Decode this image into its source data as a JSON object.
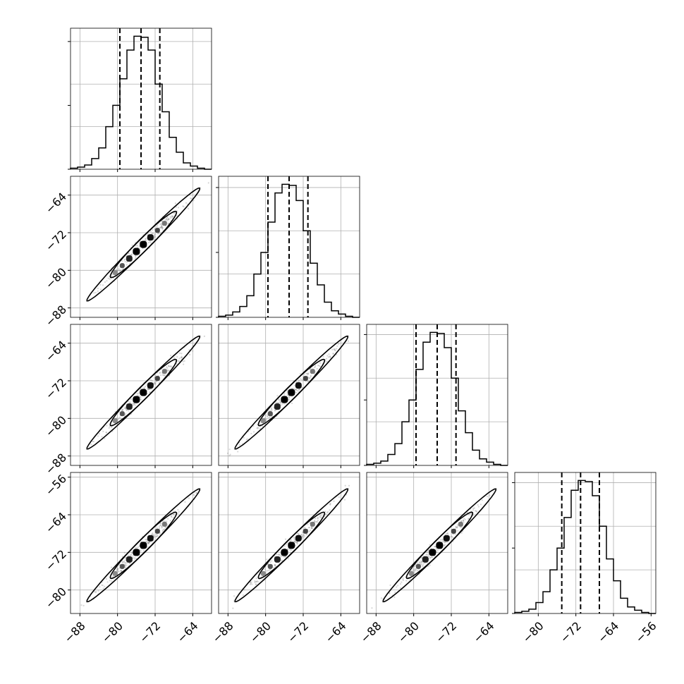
{
  "chart_data": {
    "type": "corner",
    "dimensions": 4,
    "axis_ticks": [
      [
        -88,
        -80,
        -72,
        -64
      ],
      [
        -88,
        -80,
        -72,
        -64
      ],
      [
        -88,
        -80,
        -72,
        -64
      ],
      [
        -80,
        -72,
        -64,
        -56
      ]
    ],
    "axis_ranges": [
      [
        -90,
        -60
      ],
      [
        -90,
        -60
      ],
      [
        -90,
        -60
      ],
      [
        -85,
        -55
      ]
    ],
    "grid": true,
    "histograms": [
      {
        "bin_edges": [
          -90,
          -88.5,
          -87,
          -85.5,
          -84,
          -82.5,
          -81,
          -79.5,
          -78,
          -76.5,
          -75,
          -73.5,
          -72,
          -70.5,
          -69,
          -67.5,
          -66,
          -64.5,
          -63,
          -61.5,
          -60
        ],
        "counts": [
          1,
          2,
          4,
          10,
          20,
          40,
          60,
          85,
          112,
          125,
          124,
          112,
          80,
          54,
          30,
          16,
          6,
          3,
          1,
          0
        ],
        "quantiles": [
          -79.5,
          -75.0,
          -71.0
        ]
      },
      {
        "bin_edges": [
          -90,
          -88.5,
          -87,
          -85.5,
          -84,
          -82.5,
          -81,
          -79.5,
          -78,
          -76.5,
          -75,
          -73.5,
          -72,
          -70.5,
          -69,
          -67.5,
          -66,
          -64.5,
          -63,
          -61.5,
          -60
        ],
        "counts": [
          1,
          2,
          5,
          10,
          20,
          40,
          60,
          88,
          115,
          123,
          122,
          108,
          80,
          50,
          30,
          14,
          6,
          3,
          1,
          0
        ],
        "quantiles": [
          -79.5,
          -75.0,
          -71.0
        ]
      },
      {
        "bin_edges": [
          -90,
          -88.5,
          -87,
          -85.5,
          -84,
          -82.5,
          -81,
          -79.5,
          -78,
          -76.5,
          -75,
          -73.5,
          -72,
          -70.5,
          -69,
          -67.5,
          -66,
          -64.5,
          -63,
          -61.5,
          -60
        ],
        "counts": [
          1,
          2,
          4,
          10,
          20,
          40,
          60,
          88,
          113,
          122,
          121,
          108,
          80,
          50,
          30,
          14,
          6,
          3,
          1,
          0
        ],
        "quantiles": [
          -79.5,
          -75.0,
          -71.0
        ]
      },
      {
        "bin_edges": [
          -85,
          -83.5,
          -82,
          -80.5,
          -79,
          -77.5,
          -76,
          -74.5,
          -73,
          -71.5,
          -70,
          -68.5,
          -67,
          -65.5,
          -64,
          -62.5,
          -61,
          -59.5,
          -58,
          -56.5,
          -55
        ],
        "counts": [
          1,
          2,
          4,
          10,
          20,
          40,
          60,
          88,
          113,
          122,
          121,
          108,
          80,
          50,
          30,
          14,
          6,
          3,
          1,
          0
        ],
        "quantiles": [
          -75.0,
          -71.0,
          -67.0
        ]
      }
    ],
    "scatter_cloud": {
      "from": -90,
      "to": -60,
      "center": -74.5,
      "density_sigma": 4.6,
      "spread": 0.8
    },
    "contour_levels": [
      {
        "half_length": 12.0,
        "half_width": 0.65,
        "fill": "#e4e4e4"
      },
      {
        "half_length": 7.0,
        "half_width": 0.85,
        "fill": "#bdbdbd"
      }
    ],
    "density_markers": [
      {
        "offset": -6.0,
        "size": 7,
        "shade": "#8a8a8a"
      },
      {
        "offset": -4.5,
        "size": 7,
        "shade": "#555555"
      },
      {
        "offset": -3.0,
        "size": 9,
        "shade": "#222222"
      },
      {
        "offset": -1.5,
        "size": 10,
        "shade": "#000000"
      },
      {
        "offset": 0.0,
        "size": 10,
        "shade": "#000000"
      },
      {
        "offset": 1.5,
        "size": 9,
        "shade": "#111111"
      },
      {
        "offset": 3.0,
        "size": 7,
        "shade": "#444444"
      },
      {
        "offset": 4.5,
        "size": 7,
        "shade": "#777777"
      }
    ],
    "colors": {
      "line": "#000000",
      "grid": "#b0b0b0",
      "scatter": "#8c8c8c"
    }
  }
}
